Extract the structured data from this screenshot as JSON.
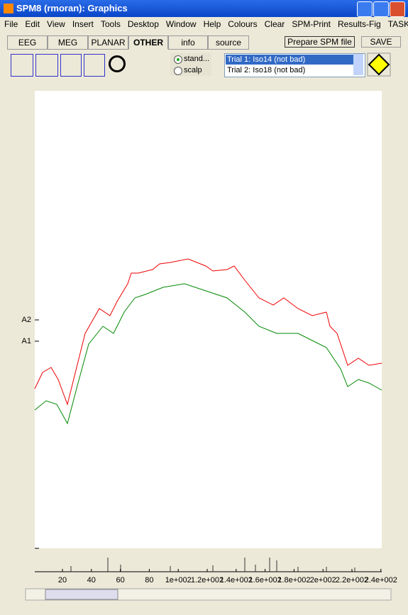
{
  "window": {
    "title": "SPM8 (rmoran): Graphics"
  },
  "menu": [
    "File",
    "Edit",
    "View",
    "Insert",
    "Tools",
    "Desktop",
    "Window",
    "Help",
    "Colours",
    "Clear",
    "SPM-Print",
    "Results-Fig",
    "TASKS"
  ],
  "tabs": [
    "EEG",
    "MEG",
    "PLANAR",
    "OTHER",
    "info",
    "source"
  ],
  "buttons": {
    "prepare": "Prepare SPM file",
    "save": "SAVE"
  },
  "radio": [
    "stand...",
    "scalp"
  ],
  "trials": [
    "Trial 1: Iso14 (not bad)",
    "Trial 2: Iso18 (not bad)"
  ],
  "plot": {
    "channel_labels": [
      "A2",
      "A1"
    ],
    "xtick_labels": [
      "20",
      "40",
      "60",
      "80",
      "1e+002",
      "1.2e+002",
      "1.4e+002",
      "1.6e+002",
      "1.8e+002",
      "2e+002",
      "2.2e+002",
      "2.4e+002"
    ]
  }
}
